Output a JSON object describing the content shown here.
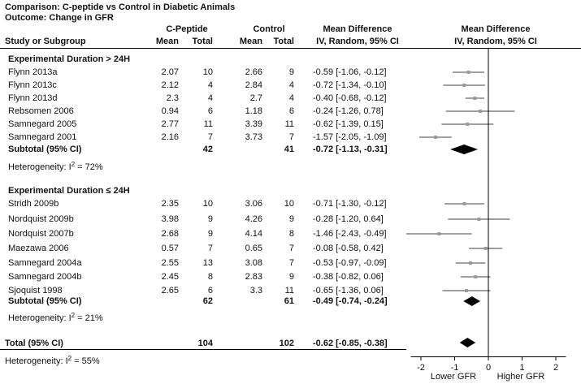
{
  "header": {
    "comparison": "Comparison: C-peptide vs Control in Diabetic Animals",
    "outcome": "Outcome: Change in GFR",
    "group1": "C-Peptide",
    "group2": "Control",
    "md_col": "Mean Difference",
    "md_sub": "IV, Random, 95% CI",
    "plot_title": "Mean Difference",
    "plot_sub": "IV, Random, 95% CI",
    "col_study": "Study or Subgroup",
    "col_mean1": "Mean",
    "col_total1": "Total",
    "col_mean2": "Mean",
    "col_total2": "Total"
  },
  "subgroups": [
    {
      "title": "Experimental Duration > 24H",
      "studies": [
        {
          "name": "Flynn 2013a",
          "m1": "2.07",
          "n1": "10",
          "m2": "2.66",
          "n2": "9",
          "ci": "-0.59 [-1.06, -0.12]"
        },
        {
          "name": "Flynn 2013c",
          "m1": "2.12",
          "n1": "4",
          "m2": "2.84",
          "n2": "4",
          "ci": "-0.72 [-1.34, -0.10]"
        },
        {
          "name": "Flynn 2013d",
          "m1": "2.3",
          "n1": "4",
          "m2": "2.7",
          "n2": "4",
          "ci": "-0.40 [-0.68, -0.12]"
        },
        {
          "name": "Rebsomen 2006",
          "m1": "0.94",
          "n1": "6",
          "m2": "1.18",
          "n2": "6",
          "ci": "-0.24 [-1.26, 0.78]"
        },
        {
          "name": "Samnegard 2005",
          "m1": "2.77",
          "n1": "11",
          "m2": "3.39",
          "n2": "11",
          "ci": "-0.62 [-1.39, 0.15]"
        },
        {
          "name": "Samnegard 2001",
          "m1": "2.16",
          "n1": "7",
          "m2": "3.73",
          "n2": "7",
          "ci": "-1.57 [-2.05, -1.09]"
        }
      ],
      "subtotal_label": "Subtotal (95% CI)",
      "subtotal_n1": "42",
      "subtotal_n2": "41",
      "subtotal_ci": "-0.72 [-1.13, -0.31]",
      "heterogeneity_prefix": "Heterogeneity: I",
      "heterogeneity_sup": "2",
      "heterogeneity_value": " = 72%"
    },
    {
      "title": "Experimental Duration ≤ 24H",
      "studies": [
        {
          "name": "Stridh 2009b",
          "m1": "2.35",
          "n1": "10",
          "m2": "3.06",
          "n2": "10",
          "ci": "-0.71 [-1.30, -0.12]"
        },
        {
          "name": "Nordquist 2009b",
          "m1": "3.98",
          "n1": "9",
          "m2": "4.26",
          "n2": "9",
          "ci": "-0.28 [-1.20, 0.64]"
        },
        {
          "name": "Nordquist 2007b",
          "m1": "2.68",
          "n1": "9",
          "m2": "4.14",
          "n2": "8",
          "ci": "-1.46 [-2.43, -0.49]"
        },
        {
          "name": "Maezawa 2006",
          "m1": "0.57",
          "n1": "7",
          "m2": "0.65",
          "n2": "7",
          "ci": "-0.08 [-0.58, 0.42]"
        },
        {
          "name": "Samnegard 2004a",
          "m1": "2.55",
          "n1": "13",
          "m2": "3.08",
          "n2": "7",
          "ci": "-0.53 [-0.97, -0.09]"
        },
        {
          "name": "Samnegard 2004b",
          "m1": "2.45",
          "n1": "8",
          "m2": "2.83",
          "n2": "9",
          "ci": "-0.38 [-0.82, 0.06]"
        },
        {
          "name": "Sjoquist 1998",
          "m1": "2.65",
          "n1": "6",
          "m2": "3.3",
          "n2": "11",
          "ci": "-0.65 [-1.36, 0.06]"
        }
      ],
      "subtotal_label": "Subtotal (95% CI)",
      "subtotal_n1": "62",
      "subtotal_n2": "61",
      "subtotal_ci": "-0.49 [-0.74, -0.24]",
      "heterogeneity_prefix": "Heterogeneity: I",
      "heterogeneity_sup": "2",
      "heterogeneity_value": " = 21%"
    }
  ],
  "total": {
    "label": "Total (95% CI)",
    "n1": "104",
    "n2": "102",
    "ci": "-0.62 [-0.85, -0.38]",
    "heterogeneity_prefix": "Heterogeneity: I",
    "heterogeneity_sup": "2",
    "heterogeneity_value": " = 55%"
  },
  "axis": {
    "ticks": [
      "-2",
      "-1",
      "0",
      "1",
      "2"
    ],
    "left_label": "Lower GFR",
    "right_label": "Higher GFR"
  },
  "chart_data": {
    "type": "forest",
    "title": "Mean Difference",
    "xlabel_left": "Lower GFR",
    "xlabel_right": "Higher GFR",
    "xlim": [
      -2.5,
      2.5
    ],
    "ticks": [
      -2,
      -1,
      0,
      1,
      2
    ],
    "studies": [
      {
        "name": "Flynn 2013a",
        "md": -0.59,
        "lo": -1.06,
        "hi": -0.12,
        "group": 0
      },
      {
        "name": "Flynn 2013c",
        "md": -0.72,
        "lo": -1.34,
        "hi": -0.1,
        "group": 0
      },
      {
        "name": "Flynn 2013d",
        "md": -0.4,
        "lo": -0.68,
        "hi": -0.12,
        "group": 0
      },
      {
        "name": "Rebsomen 2006",
        "md": -0.24,
        "lo": -1.26,
        "hi": 0.78,
        "group": 0
      },
      {
        "name": "Samnegard 2005",
        "md": -0.62,
        "lo": -1.39,
        "hi": 0.15,
        "group": 0
      },
      {
        "name": "Samnegard 2001",
        "md": -1.57,
        "lo": -2.05,
        "hi": -1.09,
        "group": 0
      },
      {
        "name": "Stridh 2009b",
        "md": -0.71,
        "lo": -1.3,
        "hi": -0.12,
        "group": 1
      },
      {
        "name": "Nordquist 2009b",
        "md": -0.28,
        "lo": -1.2,
        "hi": 0.64,
        "group": 1
      },
      {
        "name": "Nordquist 2007b",
        "md": -1.46,
        "lo": -2.43,
        "hi": -0.49,
        "group": 1
      },
      {
        "name": "Maezawa 2006",
        "md": -0.08,
        "lo": -0.58,
        "hi": 0.42,
        "group": 1
      },
      {
        "name": "Samnegard 2004a",
        "md": -0.53,
        "lo": -0.97,
        "hi": -0.09,
        "group": 1
      },
      {
        "name": "Samnegard 2004b",
        "md": -0.38,
        "lo": -0.82,
        "hi": 0.06,
        "group": 1
      },
      {
        "name": "Sjoquist 1998",
        "md": -0.65,
        "lo": -1.36,
        "hi": 0.06,
        "group": 1
      }
    ],
    "summaries": [
      {
        "name": "Subtotal > 24H",
        "md": -0.72,
        "lo": -1.13,
        "hi": -0.31
      },
      {
        "name": "Subtotal ≤ 24H",
        "md": -0.49,
        "lo": -0.74,
        "hi": -0.24
      },
      {
        "name": "Total",
        "md": -0.62,
        "lo": -0.85,
        "hi": -0.38
      }
    ]
  }
}
